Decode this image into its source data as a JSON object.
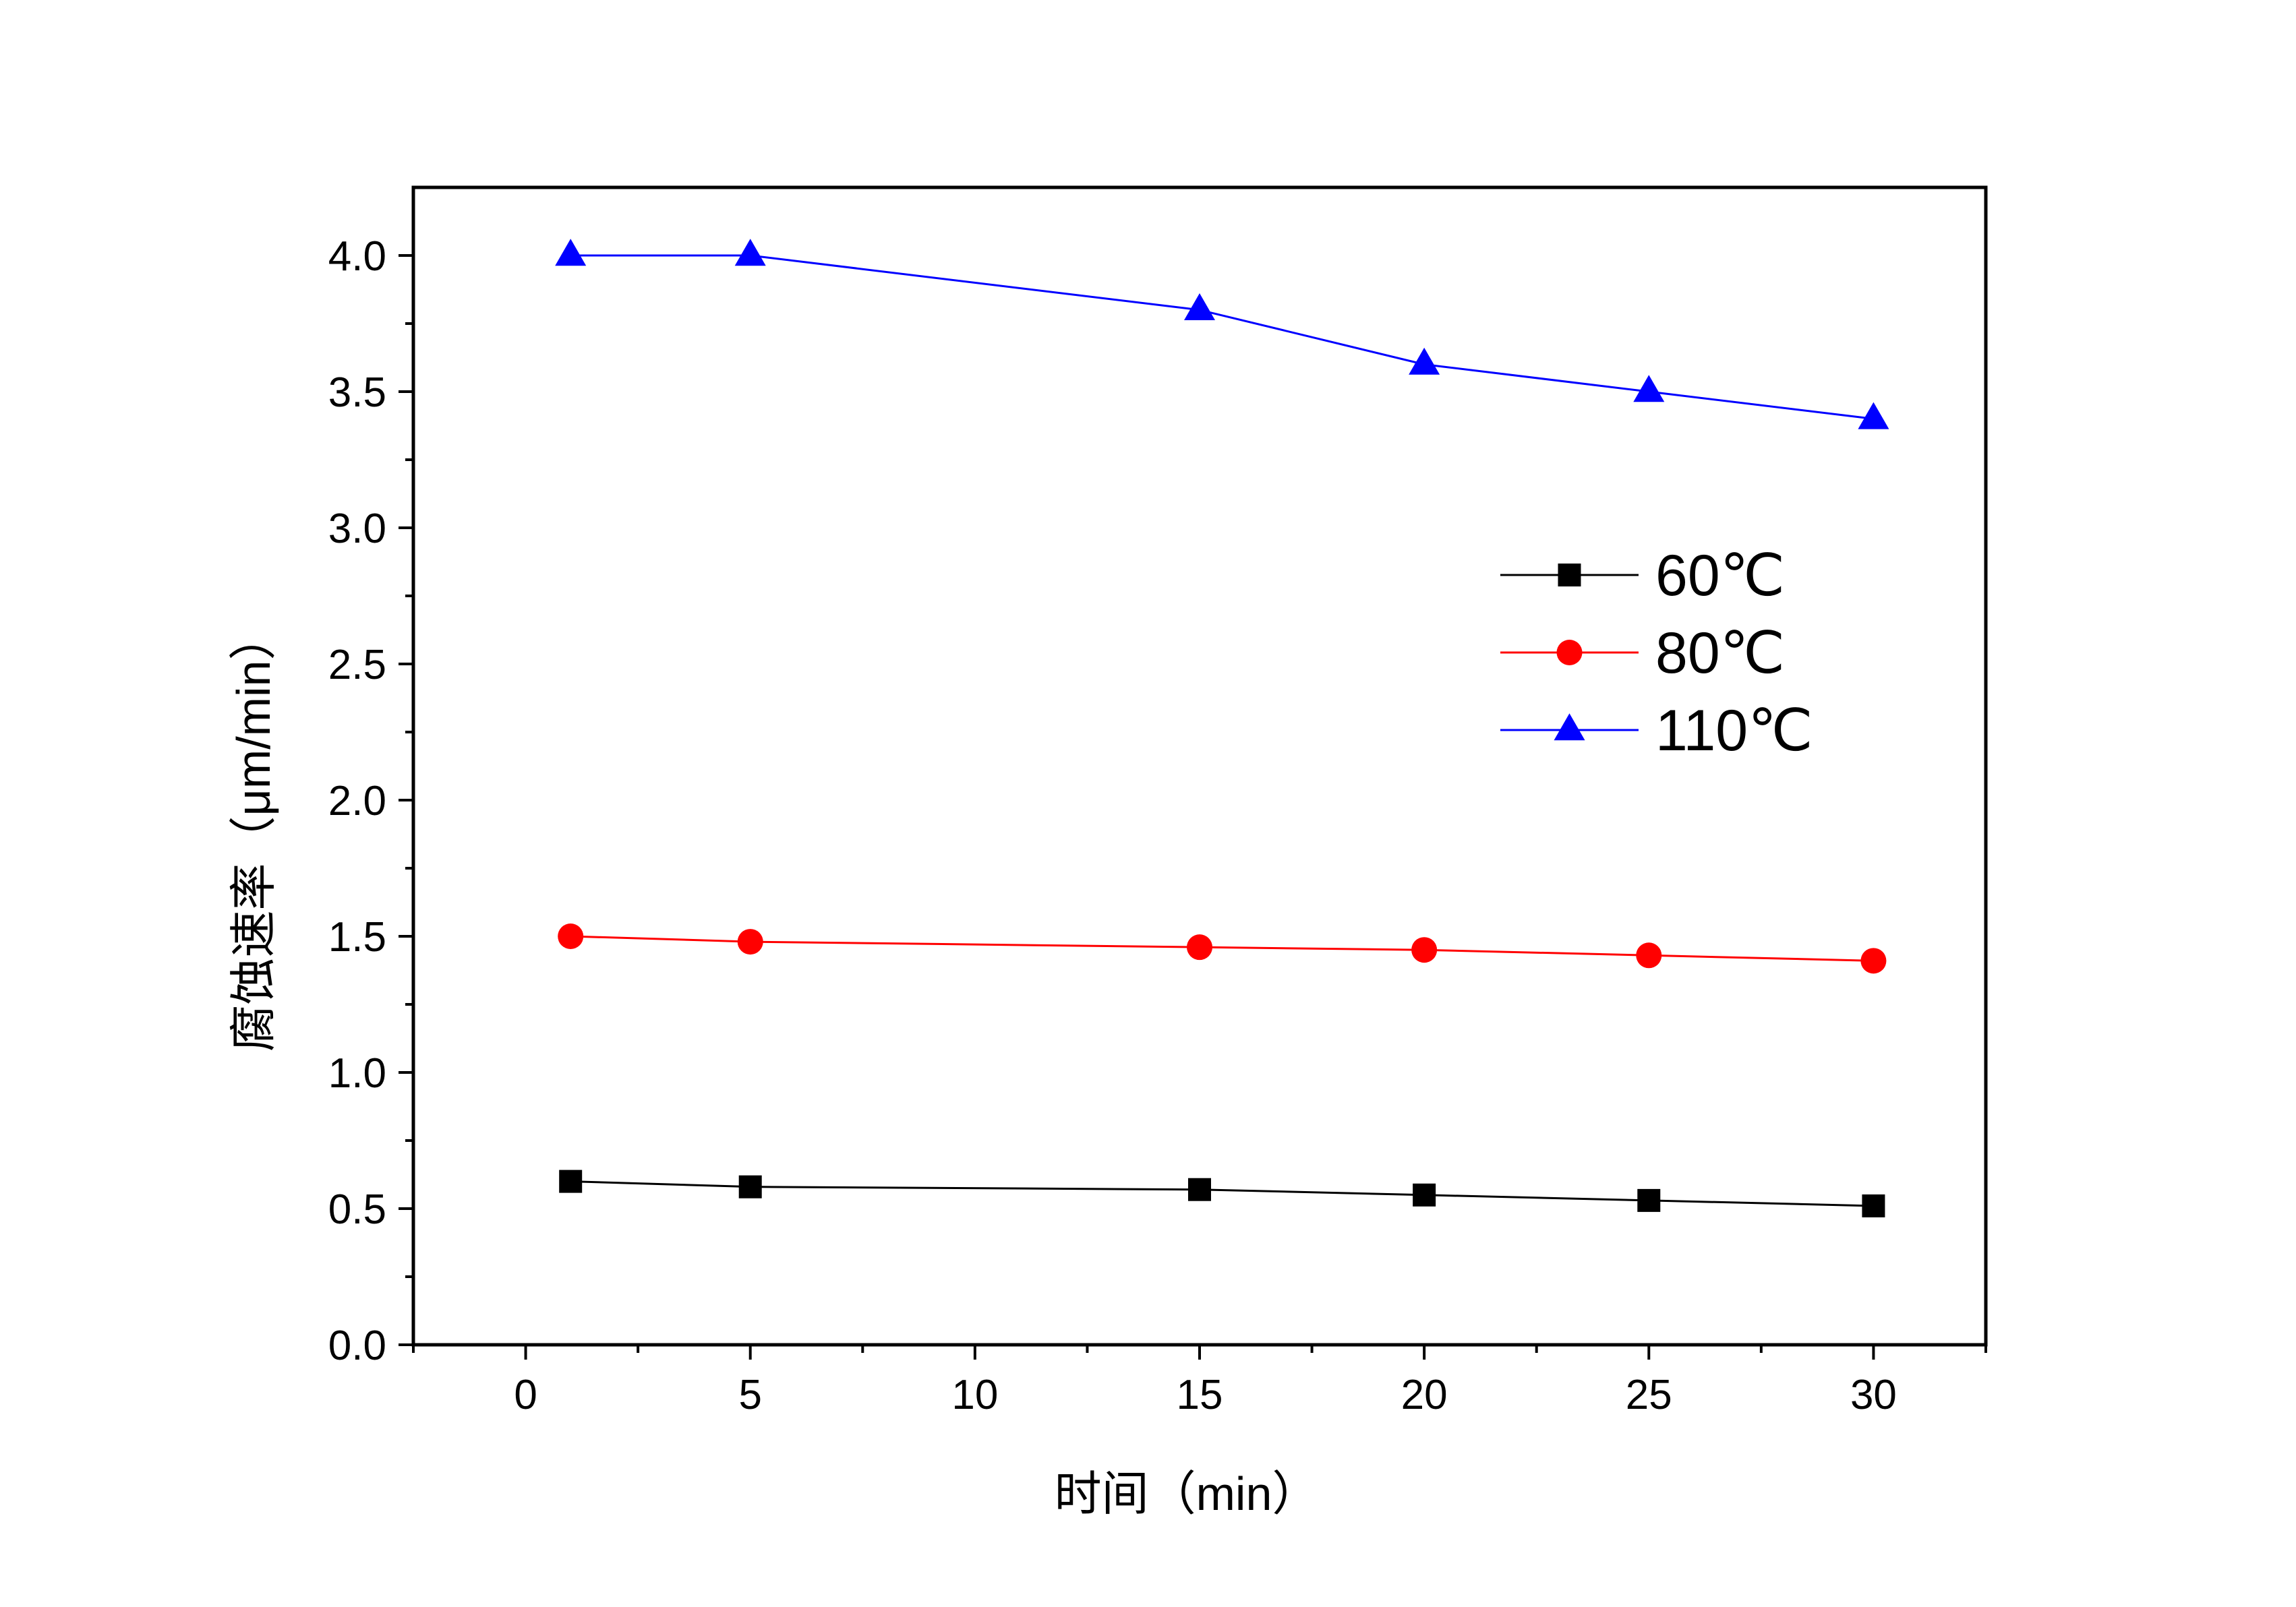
{
  "chart_data": {
    "type": "line",
    "title": "",
    "xlabel": "时间（min）",
    "ylabel": "腐蚀速率（μm/min）",
    "xlim": [
      -2.5,
      32.5
    ],
    "ylim": [
      0,
      4.25
    ],
    "x_ticks": [
      0,
      5,
      10,
      15,
      20,
      25,
      30
    ],
    "x_tick_labels": [
      "0",
      "5",
      "10",
      "15",
      "20",
      "25",
      "30"
    ],
    "y_ticks": [
      0,
      0.5,
      1.0,
      1.5,
      2.0,
      2.5,
      3.0,
      3.5,
      4.0
    ],
    "y_tick_labels": [
      "0.0",
      "0.5",
      "1.0",
      "1.5",
      "2.0",
      "2.5",
      "3.0",
      "3.5",
      "4.0"
    ],
    "grid": false,
    "legend_position": "right, mid-upper",
    "x": [
      1,
      5,
      15,
      20,
      25,
      30
    ],
    "series": [
      {
        "name": "60℃",
        "color": "#000000",
        "marker": "square",
        "values": [
          0.6,
          0.58,
          0.57,
          0.55,
          0.53,
          0.51
        ]
      },
      {
        "name": "80℃",
        "color": "#ff0000",
        "marker": "circle",
        "values": [
          1.5,
          1.48,
          1.46,
          1.45,
          1.43,
          1.41
        ]
      },
      {
        "name": "110℃",
        "color": "#0000ff",
        "marker": "triangle",
        "values": [
          4.0,
          4.0,
          3.8,
          3.6,
          3.5,
          3.4
        ]
      }
    ]
  }
}
